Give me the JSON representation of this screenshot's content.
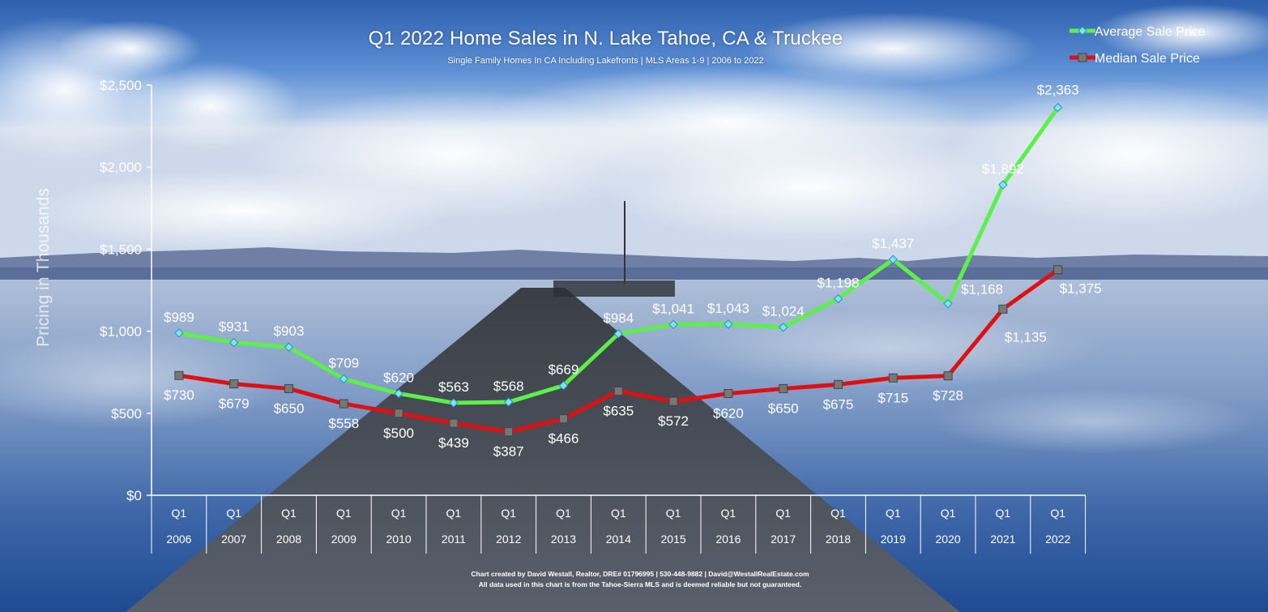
{
  "header": {
    "title": "Q1 2022 Home Sales in N. Lake Tahoe, CA & Truckee",
    "subtitle": "Single Family Homes In CA Including Lakefronts | MLS Areas 1-9 | 2006 to 2022"
  },
  "footer": {
    "line1": "Chart created by David Westall, Realtor, DRE# 01796995 | 530-448-9882 | David@WestallRealEstate.com",
    "line2": "All data used in this chart is from the Tahoe-Sierra MLS and is deemed reliable but  not guaranteed."
  },
  "colors": {
    "average": "#5cf04a",
    "median": "#e01010",
    "text": "#ffffff"
  },
  "chart_data": {
    "type": "line",
    "title": "Q1 2022 Home Sales in N. Lake Tahoe, CA & Truckee",
    "subtitle": "Single Family Homes In CA Including Lakefronts | MLS Areas 1-9 | 2006 to 2022",
    "ylabel": "Pricing in Thousands",
    "ylim": [
      0,
      2500
    ],
    "yticks": [
      0,
      500,
      1000,
      1500,
      2000,
      2500
    ],
    "ytick_labels": [
      "$0",
      "$500",
      "$1,000",
      "$1,500",
      "$2,000",
      "$2,500"
    ],
    "grid": false,
    "legend_position": "top-right",
    "quarter_label": "Q1",
    "categories": [
      "2006",
      "2007",
      "2008",
      "2009",
      "2010",
      "2011",
      "2012",
      "2013",
      "2014",
      "2015",
      "2016",
      "2017",
      "2018",
      "2019",
      "2020",
      "2021",
      "2022"
    ],
    "series": [
      {
        "name": "Average Sale Price",
        "color": "#5cf04a",
        "marker": "diamond",
        "values": [
          989,
          931,
          903,
          709,
          620,
          563,
          568,
          669,
          984,
          1041,
          1043,
          1024,
          1198,
          1437,
          1168,
          1892,
          2363
        ],
        "labels": [
          "$989",
          "$931",
          "$903",
          "$709",
          "$620",
          "$563",
          "$568",
          "$669",
          "$984",
          "$1,041",
          "$1,043",
          "$1,024",
          "$1,198",
          "$1,437",
          "$1,168",
          "$1,892",
          "$2,363"
        ]
      },
      {
        "name": "Median Sale Price",
        "color": "#e01010",
        "marker": "square",
        "values": [
          730,
          679,
          650,
          558,
          500,
          439,
          387,
          466,
          635,
          572,
          620,
          650,
          675,
          715,
          728,
          1135,
          1375
        ],
        "labels": [
          "$730",
          "$679",
          "$650",
          "$558",
          "$500",
          "$439",
          "$387",
          "$466",
          "$635",
          "$572",
          "$620",
          "$650",
          "$675",
          "$715",
          "$728",
          "$1,135",
          "$1,375"
        ]
      }
    ]
  }
}
